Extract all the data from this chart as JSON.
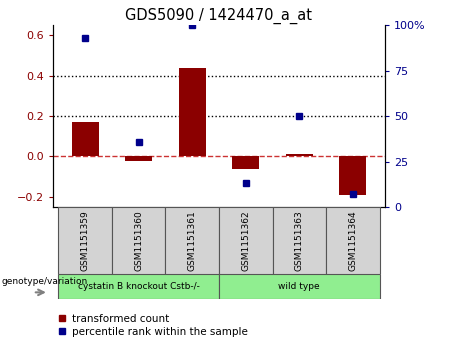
{
  "title": "GDS5090 / 1424470_a_at",
  "samples": [
    "GSM1151359",
    "GSM1151360",
    "GSM1151361",
    "GSM1151362",
    "GSM1151363",
    "GSM1151364"
  ],
  "transformed_count": [
    0.17,
    -0.02,
    0.44,
    -0.06,
    0.01,
    -0.19
  ],
  "percentile_rank_pct": [
    93,
    36,
    100,
    13,
    50,
    7
  ],
  "groups": [
    {
      "label": "cystatin B knockout Cstb-/-",
      "span": [
        0,
        2
      ],
      "color": "#90ee90"
    },
    {
      "label": "wild type",
      "span": [
        3,
        5
      ],
      "color": "#90ee90"
    }
  ],
  "bar_color": "#8B0000",
  "dot_color": "#00008B",
  "ylim_left": [
    -0.25,
    0.65
  ],
  "ylim_right": [
    -0.25,
    0.65
  ],
  "yticks_left": [
    -0.2,
    0.0,
    0.2,
    0.4,
    0.6
  ],
  "yticks_right": [
    0,
    25,
    50,
    75,
    100
  ],
  "ytick_labels_right": [
    "0",
    "25",
    "50",
    "75",
    "100%"
  ],
  "hlines": [
    0.2,
    0.4
  ],
  "zero_line_color": "#cc3333",
  "hline_color": "black",
  "background_color": "#ffffff",
  "label_transformed": "transformed count",
  "label_percentile": "percentile rank within the sample",
  "genotype_label": "genotype/variation",
  "sample_box_color": "#d3d3d3",
  "bar_width": 0.5
}
